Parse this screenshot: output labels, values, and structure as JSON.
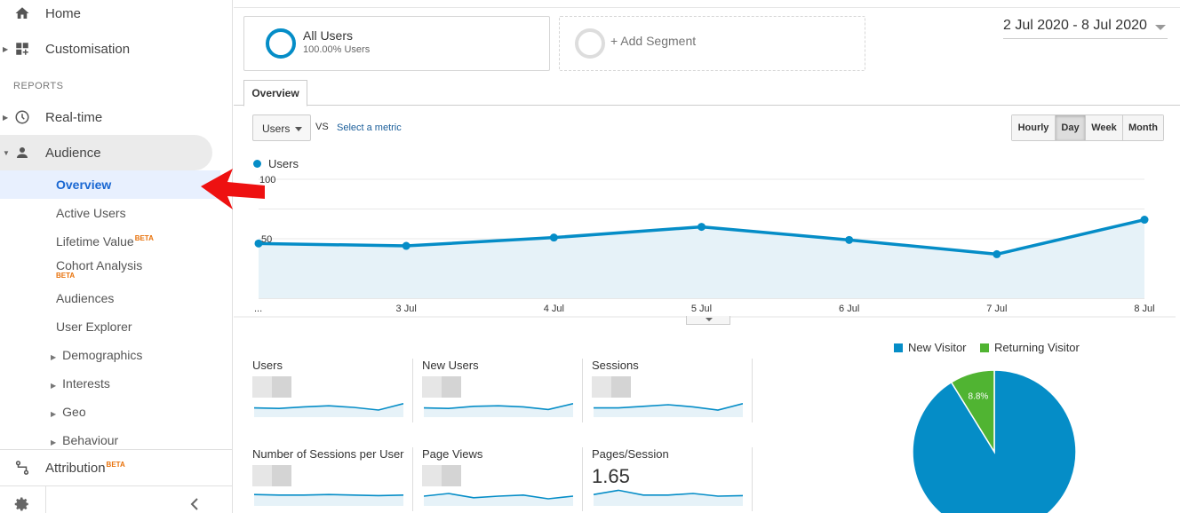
{
  "sidebar": {
    "home": "Home",
    "customisation": "Customisation",
    "reports_header": "REPORTS",
    "realtime": "Real-time",
    "audience": "Audience",
    "overview": "Overview",
    "active_users": "Active Users",
    "lifetime_value": "Lifetime Value",
    "cohort_analysis": "Cohort Analysis",
    "beta": "BETA",
    "audiences": "Audiences",
    "user_explorer": "User Explorer",
    "demographics": "Demographics",
    "interests": "Interests",
    "geo": "Geo",
    "behaviour": "Behaviour",
    "attribution": "Attribution"
  },
  "segments": {
    "all_users_title": "All Users",
    "all_users_sub": "100.00% Users",
    "add_segment": "+ Add Segment"
  },
  "date_range": "2 Jul 2020 - 8 Jul 2020",
  "tab": "Overview",
  "metric_select": "Users",
  "vs": "VS",
  "select_metric": "Select a metric",
  "period_buttons": [
    "Hourly",
    "Day",
    "Week",
    "Month"
  ],
  "period_active": "Day",
  "chart_legend": "Users",
  "chart_data": {
    "type": "area",
    "series": [
      {
        "name": "Users",
        "values": [
          46,
          44,
          51,
          60,
          49,
          37,
          66
        ]
      }
    ],
    "x": [
      "...",
      "3 Jul",
      "4 Jul",
      "5 Jul",
      "6 Jul",
      "7 Jul",
      "8 Jul"
    ],
    "yticks": [
      "100",
      "50"
    ],
    "ylim": [
      0,
      100
    ],
    "color": "#058dc7"
  },
  "tiles": [
    {
      "name": "Users",
      "value": ""
    },
    {
      "name": "New Users",
      "value": ""
    },
    {
      "name": "Sessions",
      "value": ""
    },
    {
      "name": "Number of Sessions per User",
      "value": ""
    },
    {
      "name": "Page Views",
      "value": ""
    },
    {
      "name": "Pages/Session",
      "value": "1.65"
    }
  ],
  "pie": {
    "legend": [
      "New Visitor",
      "Returning Visitor"
    ],
    "colors": [
      "#058dc7",
      "#50b432"
    ],
    "returning_pct_label": "8.8%",
    "returning_fraction": 0.088
  }
}
